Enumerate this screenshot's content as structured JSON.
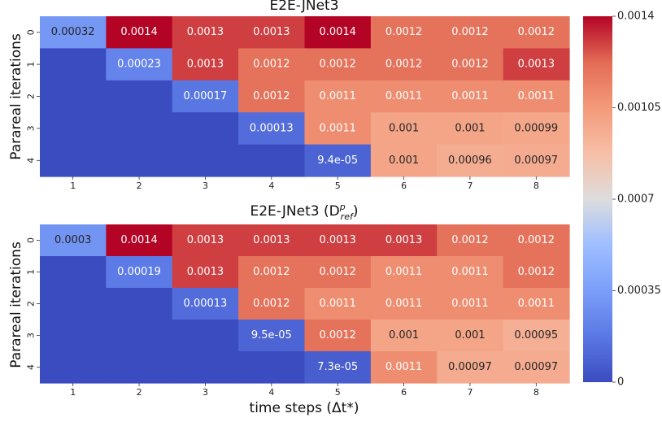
{
  "chart_data": [
    {
      "type": "heatmap",
      "title": "E2E-JNet3",
      "xlabel": "",
      "ylabel": "Parareal iterations",
      "x_ticks": [
        "1",
        "2",
        "3",
        "4",
        "5",
        "6",
        "7",
        "8"
      ],
      "y_ticks": [
        "0",
        "1",
        "2",
        "3",
        "4"
      ],
      "values": [
        [
          0.00032,
          0.0014,
          0.0013,
          0.0013,
          0.0014,
          0.0012,
          0.0012,
          0.0012
        ],
        [
          null,
          0.00023,
          0.0013,
          0.0012,
          0.0012,
          0.0012,
          0.0012,
          0.0013
        ],
        [
          null,
          null,
          0.00017,
          0.0012,
          0.0011,
          0.0011,
          0.0011,
          0.0011
        ],
        [
          null,
          null,
          null,
          0.00013,
          0.0011,
          0.001,
          0.001,
          0.00099
        ],
        [
          null,
          null,
          null,
          null,
          9.4e-05,
          0.001,
          0.00096,
          0.00097
        ]
      ],
      "labels": [
        [
          "0.00032",
          "0.0014",
          "0.0013",
          "0.0013",
          "0.0014",
          "0.0012",
          "0.0012",
          "0.0012"
        ],
        [
          "",
          "0.00023",
          "0.0013",
          "0.0012",
          "0.0012",
          "0.0012",
          "0.0012",
          "0.0013"
        ],
        [
          "",
          "",
          "0.00017",
          "0.0012",
          "0.0011",
          "0.0011",
          "0.0011",
          "0.0011"
        ],
        [
          "",
          "",
          "",
          "0.00013",
          "0.0011",
          "0.001",
          "0.001",
          "0.00099"
        ],
        [
          "",
          "",
          "",
          "",
          "9.4e-05",
          "0.001",
          "0.00096",
          "0.00097"
        ]
      ]
    },
    {
      "type": "heatmap",
      "title": "E2E-JNet3 (D",
      "title_sup": "p",
      "title_sub": "ref",
      "title_close": ")",
      "xlabel": "time steps (Δt*)",
      "ylabel": "Parareal iterations",
      "x_ticks": [
        "1",
        "2",
        "3",
        "4",
        "5",
        "6",
        "7",
        "8"
      ],
      "y_ticks": [
        "0",
        "1",
        "2",
        "3",
        "4"
      ],
      "values": [
        [
          0.0003,
          0.0014,
          0.0013,
          0.0013,
          0.0013,
          0.0013,
          0.0012,
          0.0012
        ],
        [
          null,
          0.00019,
          0.0013,
          0.0012,
          0.0012,
          0.0011,
          0.0011,
          0.0012
        ],
        [
          null,
          null,
          0.00013,
          0.0012,
          0.0011,
          0.0011,
          0.0011,
          0.0011
        ],
        [
          null,
          null,
          null,
          9.5e-05,
          0.0012,
          0.001,
          0.001,
          0.00095
        ],
        [
          null,
          null,
          null,
          null,
          7.3e-05,
          0.0011,
          0.00097,
          0.00097
        ]
      ],
      "labels": [
        [
          "0.0003",
          "0.0014",
          "0.0013",
          "0.0013",
          "0.0013",
          "0.0013",
          "0.0012",
          "0.0012"
        ],
        [
          "",
          "0.00019",
          "0.0013",
          "0.0012",
          "0.0012",
          "0.0011",
          "0.0011",
          "0.0012"
        ],
        [
          "",
          "",
          "0.00013",
          "0.0012",
          "0.0011",
          "0.0011",
          "0.0011",
          "0.0011"
        ],
        [
          "",
          "",
          "",
          "9.5e-05",
          "0.0012",
          "0.001",
          "0.001",
          "0.00095"
        ],
        [
          "",
          "",
          "",
          "",
          "7.3e-05",
          "0.0011",
          "0.00097",
          "0.00097"
        ]
      ]
    }
  ],
  "colorbar": {
    "vmin": 0,
    "vmax": 0.0014,
    "ticks": [
      0,
      0.00035,
      0.0007,
      0.00105,
      0.0014
    ],
    "tick_labels": [
      "0",
      "0.00035",
      "0.0007",
      "0.00105",
      "0.0014"
    ],
    "colormap": "coolwarm",
    "low_color": "#3b4cc0",
    "mid_color": "#dddddd",
    "high_color": "#b40426"
  }
}
